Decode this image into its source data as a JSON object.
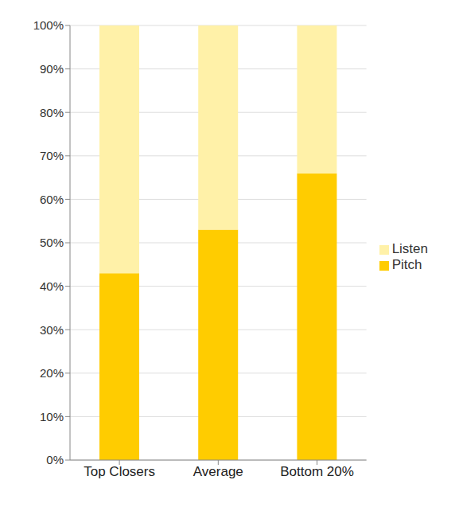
{
  "chart_data": {
    "type": "bar",
    "stacked": true,
    "legend": "right",
    "grid": true,
    "categories": [
      "Top Closers",
      "Average",
      "Bottom 20%"
    ],
    "series": [
      {
        "name": "Pitch",
        "color": "#ffcc00",
        "values": [
          43,
          53,
          66
        ]
      },
      {
        "name": "Listen",
        "color": "#fff1a8",
        "values": [
          57,
          47,
          34
        ]
      }
    ],
    "ylim": [
      0,
      100
    ],
    "yticks": [
      {
        "value": 0,
        "label": "0%"
      },
      {
        "value": 10,
        "label": "10%"
      },
      {
        "value": 20,
        "label": "20%"
      },
      {
        "value": 30,
        "label": "30%"
      },
      {
        "value": 40,
        "label": "40%"
      },
      {
        "value": 50,
        "label": "50%"
      },
      {
        "value": 60,
        "label": "60%"
      },
      {
        "value": 70,
        "label": "70%"
      },
      {
        "value": 80,
        "label": "80%"
      },
      {
        "value": 90,
        "label": "90%"
      },
      {
        "value": 100,
        "label": "100%"
      }
    ]
  }
}
